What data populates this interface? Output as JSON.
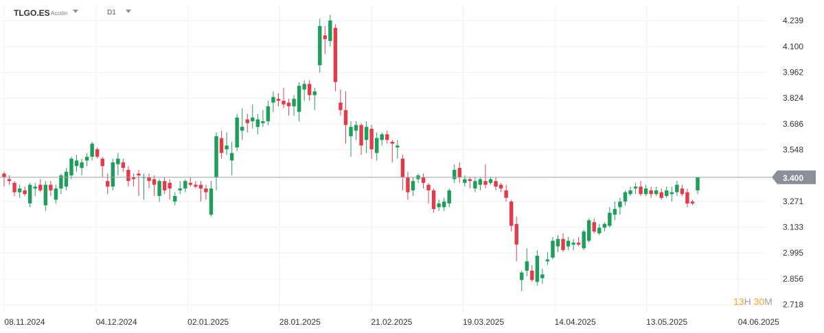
{
  "header": {
    "symbol": "TLGO.ES",
    "asset_type": "Acción",
    "timeframe": "D1"
  },
  "countdown": {
    "hours": "13",
    "hours_unit": "H",
    "minutes": "30",
    "minutes_unit": "M"
  },
  "colors": {
    "up": "#1e9e5a",
    "down": "#e23b4a",
    "grid": "#eef0f3",
    "axis_text": "#333333",
    "price_line": "#9aa0a6",
    "price_tag": "#8a8f98"
  },
  "chart_data": {
    "type": "candlestick",
    "symbol": "TLGO.ES",
    "timeframe": "D1",
    "ylim": [
      2.68,
      4.32
    ],
    "y_ticks": [
      "4.239",
      "4.100",
      "3.962",
      "3.824",
      "3.686",
      "3.548",
      "3.400",
      "3.271",
      "3.133",
      "2.995",
      "2.856",
      "2.718"
    ],
    "x_ticks": [
      "08.11.2024",
      "04.12.2024",
      "02.01.2025",
      "28.01.2025",
      "21.02.2025",
      "19.03.2025",
      "14.04.2025",
      "13.05.2025",
      "04.06.2025"
    ],
    "current_price": "3.400",
    "grid": true,
    "candles": [
      [
        3.42,
        3.43,
        3.35,
        3.4
      ],
      [
        3.39,
        3.41,
        3.36,
        3.38
      ],
      [
        3.37,
        3.38,
        3.3,
        3.32
      ],
      [
        3.32,
        3.36,
        3.29,
        3.34
      ],
      [
        3.33,
        3.35,
        3.3,
        3.31
      ],
      [
        3.26,
        3.37,
        3.24,
        3.36
      ],
      [
        3.34,
        3.37,
        3.3,
        3.35
      ],
      [
        3.36,
        3.39,
        3.32,
        3.33
      ],
      [
        3.25,
        3.38,
        3.22,
        3.36
      ],
      [
        3.36,
        3.38,
        3.3,
        3.33
      ],
      [
        3.28,
        3.36,
        3.26,
        3.34
      ],
      [
        3.34,
        3.42,
        3.31,
        3.41
      ],
      [
        3.35,
        3.45,
        3.33,
        3.43
      ],
      [
        3.41,
        3.51,
        3.39,
        3.5
      ],
      [
        3.46,
        3.52,
        3.43,
        3.49
      ],
      [
        3.45,
        3.5,
        3.41,
        3.48
      ],
      [
        3.49,
        3.53,
        3.46,
        3.51
      ],
      [
        3.51,
        3.59,
        3.49,
        3.58
      ],
      [
        3.55,
        3.56,
        3.5,
        3.51
      ],
      [
        3.5,
        3.51,
        3.4,
        3.46
      ],
      [
        3.38,
        3.42,
        3.31,
        3.35
      ],
      [
        3.35,
        3.5,
        3.33,
        3.48
      ],
      [
        3.47,
        3.53,
        3.41,
        3.5
      ],
      [
        3.48,
        3.5,
        3.43,
        3.45
      ],
      [
        3.44,
        3.46,
        3.35,
        3.38
      ],
      [
        3.4,
        3.42,
        3.35,
        3.39
      ],
      [
        3.42,
        3.44,
        3.3,
        3.41
      ],
      [
        3.4,
        3.42,
        3.28,
        3.4
      ],
      [
        3.4,
        3.42,
        3.34,
        3.38
      ],
      [
        3.39,
        3.41,
        3.3,
        3.36
      ],
      [
        3.3,
        3.39,
        3.27,
        3.38
      ],
      [
        3.38,
        3.4,
        3.31,
        3.33
      ],
      [
        3.37,
        3.39,
        3.28,
        3.34
      ],
      [
        3.27,
        3.32,
        3.25,
        3.3
      ],
      [
        3.33,
        3.38,
        3.31,
        3.34
      ],
      [
        3.34,
        3.39,
        3.32,
        3.38
      ],
      [
        3.37,
        3.4,
        3.35,
        3.36
      ],
      [
        3.36,
        3.38,
        3.34,
        3.35
      ],
      [
        3.36,
        3.38,
        3.27,
        3.34
      ],
      [
        3.34,
        3.36,
        3.28,
        3.32
      ],
      [
        3.2,
        3.38,
        3.19,
        3.34
      ],
      [
        3.4,
        3.64,
        3.33,
        3.62
      ],
      [
        3.61,
        3.65,
        3.5,
        3.53
      ],
      [
        3.55,
        3.64,
        3.52,
        3.57
      ],
      [
        3.49,
        3.59,
        3.41,
        3.53
      ],
      [
        3.56,
        3.74,
        3.54,
        3.72
      ],
      [
        3.65,
        3.77,
        3.6,
        3.67
      ],
      [
        3.71,
        3.74,
        3.64,
        3.69
      ],
      [
        3.7,
        3.79,
        3.66,
        3.72
      ],
      [
        3.67,
        3.74,
        3.63,
        3.71
      ],
      [
        3.69,
        3.76,
        3.67,
        3.7
      ],
      [
        3.7,
        3.81,
        3.68,
        3.78
      ],
      [
        3.8,
        3.86,
        3.75,
        3.83
      ],
      [
        3.82,
        3.85,
        3.78,
        3.81
      ],
      [
        3.81,
        3.88,
        3.77,
        3.79
      ],
      [
        3.8,
        3.82,
        3.73,
        3.78
      ],
      [
        3.78,
        3.84,
        3.73,
        3.82
      ],
      [
        3.75,
        3.91,
        3.7,
        3.89
      ],
      [
        3.87,
        3.92,
        3.81,
        3.9
      ],
      [
        3.9,
        3.92,
        3.81,
        3.84
      ],
      [
        3.84,
        3.88,
        3.76,
        3.86
      ],
      [
        4.0,
        4.25,
        3.96,
        4.21
      ],
      [
        4.16,
        4.21,
        4.06,
        4.14
      ],
      [
        4.13,
        4.27,
        4.1,
        4.24
      ],
      [
        4.2,
        4.22,
        3.86,
        3.91
      ],
      [
        3.8,
        3.87,
        3.73,
        3.76
      ],
      [
        3.76,
        3.86,
        3.58,
        3.68
      ],
      [
        3.62,
        3.7,
        3.51,
        3.67
      ],
      [
        3.65,
        3.7,
        3.6,
        3.68
      ],
      [
        3.68,
        3.69,
        3.52,
        3.57
      ],
      [
        3.6,
        3.7,
        3.53,
        3.67
      ],
      [
        3.66,
        3.68,
        3.5,
        3.55
      ],
      [
        3.53,
        3.64,
        3.49,
        3.61
      ],
      [
        3.6,
        3.64,
        3.57,
        3.63
      ],
      [
        3.63,
        3.65,
        3.58,
        3.6
      ],
      [
        3.59,
        3.6,
        3.48,
        3.58
      ],
      [
        3.56,
        3.6,
        3.5,
        3.57
      ],
      [
        3.5,
        3.52,
        3.33,
        3.4
      ],
      [
        3.4,
        3.43,
        3.28,
        3.32
      ],
      [
        3.33,
        3.4,
        3.3,
        3.38
      ],
      [
        3.39,
        3.42,
        3.37,
        3.41
      ],
      [
        3.4,
        3.42,
        3.34,
        3.37
      ],
      [
        3.36,
        3.37,
        3.26,
        3.33
      ],
      [
        3.33,
        3.34,
        3.21,
        3.23
      ],
      [
        3.24,
        3.28,
        3.22,
        3.26
      ],
      [
        3.24,
        3.29,
        3.22,
        3.27
      ],
      [
        3.26,
        3.34,
        3.24,
        3.33
      ],
      [
        3.39,
        3.47,
        3.37,
        3.44
      ],
      [
        3.45,
        3.48,
        3.37,
        3.4
      ],
      [
        3.37,
        3.41,
        3.35,
        3.39
      ],
      [
        3.39,
        3.4,
        3.34,
        3.38
      ],
      [
        3.34,
        3.4,
        3.32,
        3.38
      ],
      [
        3.36,
        3.4,
        3.33,
        3.39
      ],
      [
        3.38,
        3.47,
        3.34,
        3.36
      ],
      [
        3.37,
        3.4,
        3.36,
        3.39
      ],
      [
        3.38,
        3.4,
        3.33,
        3.35
      ],
      [
        3.36,
        3.37,
        3.32,
        3.34
      ],
      [
        3.33,
        3.36,
        3.27,
        3.29
      ],
      [
        3.27,
        3.28,
        3.11,
        3.14
      ],
      [
        3.15,
        3.19,
        2.95,
        3.04
      ],
      [
        2.85,
        2.9,
        2.79,
        2.89
      ],
      [
        2.9,
        3.02,
        2.87,
        2.95
      ],
      [
        2.9,
        2.93,
        2.84,
        2.85
      ],
      [
        2.84,
        3.01,
        2.82,
        2.98
      ],
      [
        2.86,
        2.91,
        2.83,
        2.88
      ],
      [
        2.95,
        3.0,
        2.93,
        2.96
      ],
      [
        2.97,
        3.08,
        2.96,
        3.06
      ],
      [
        3.03,
        3.09,
        3.0,
        3.07
      ],
      [
        3.07,
        3.1,
        3.0,
        3.01
      ],
      [
        3.03,
        3.08,
        3.01,
        3.06
      ],
      [
        3.04,
        3.07,
        3.01,
        3.05
      ],
      [
        3.05,
        3.08,
        3.03,
        3.04
      ],
      [
        3.02,
        3.12,
        3.01,
        3.11
      ],
      [
        3.06,
        3.18,
        3.05,
        3.17
      ],
      [
        3.16,
        3.18,
        3.1,
        3.11
      ],
      [
        3.1,
        3.15,
        3.09,
        3.13
      ],
      [
        3.13,
        3.16,
        3.11,
        3.15
      ],
      [
        3.14,
        3.24,
        3.13,
        3.21
      ],
      [
        3.2,
        3.27,
        3.17,
        3.23
      ],
      [
        3.24,
        3.29,
        3.2,
        3.27
      ],
      [
        3.27,
        3.33,
        3.25,
        3.32
      ],
      [
        3.31,
        3.35,
        3.3,
        3.33
      ],
      [
        3.34,
        3.37,
        3.31,
        3.35
      ],
      [
        3.35,
        3.38,
        3.3,
        3.31
      ],
      [
        3.31,
        3.36,
        3.3,
        3.34
      ],
      [
        3.33,
        3.35,
        3.29,
        3.31
      ],
      [
        3.31,
        3.35,
        3.3,
        3.33
      ],
      [
        3.32,
        3.34,
        3.28,
        3.29
      ],
      [
        3.3,
        3.35,
        3.29,
        3.33
      ],
      [
        3.31,
        3.35,
        3.27,
        3.32
      ],
      [
        3.32,
        3.38,
        3.3,
        3.36
      ],
      [
        3.34,
        3.36,
        3.3,
        3.31
      ],
      [
        3.32,
        3.34,
        3.24,
        3.26
      ],
      [
        3.27,
        3.28,
        3.25,
        3.26
      ],
      [
        3.33,
        3.4,
        3.31,
        3.4
      ]
    ]
  }
}
